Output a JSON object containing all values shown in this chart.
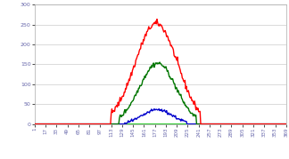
{
  "x_ticks": [
    1,
    17,
    33,
    49,
    65,
    81,
    97,
    113,
    129,
    145,
    161,
    177,
    193,
    209,
    225,
    241,
    257,
    273,
    289,
    305,
    321,
    337,
    353,
    369
  ],
  "x_min": 1,
  "x_max": 369,
  "y_min": 0,
  "y_max": 300,
  "y_ticks": [
    0,
    50,
    100,
    150,
    200,
    250,
    300
  ],
  "red_start": 113,
  "red_end": 243,
  "red_peak_x": 179,
  "red_peak_y": 253,
  "green_start": 125,
  "green_end": 237,
  "green_peak_x": 181,
  "green_peak_y": 153,
  "blue_start": 133,
  "blue_end": 223,
  "blue_peak_x": 181,
  "blue_peak_y": 36,
  "bg_color": "#ffffff",
  "plot_bg": "#ffffff",
  "red_color": "#ff0000",
  "green_color": "#007700",
  "blue_color": "#0000cc",
  "flat_line_color": "#00bb00",
  "grid_color": "#cccccc",
  "tick_label_color": "#6666aa",
  "linewidth": 1.0
}
